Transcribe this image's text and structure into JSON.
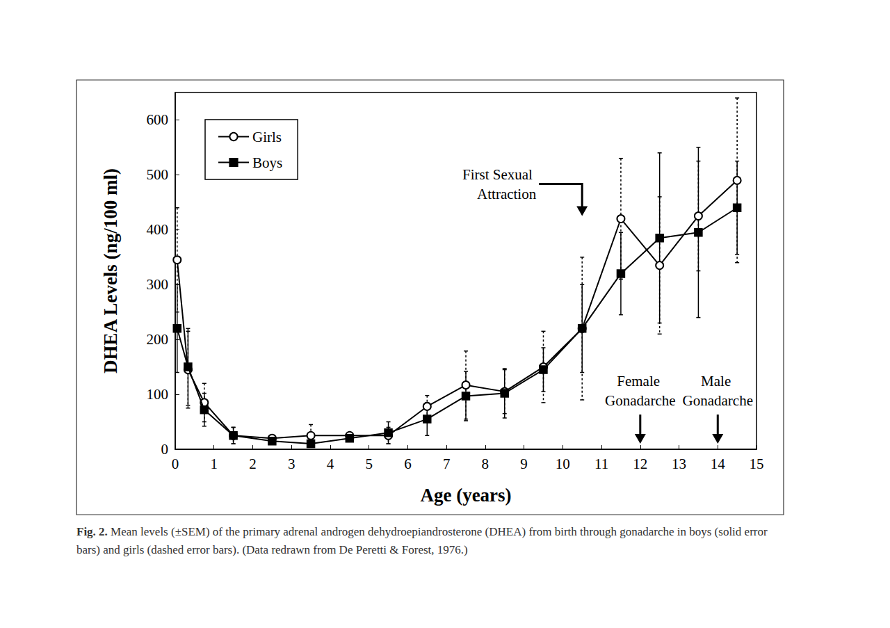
{
  "chart_data": {
    "type": "line",
    "x_label": "Age (years)",
    "y_label": "DHEA Levels (ng/100 ml)",
    "x": [
      0.05,
      0.33,
      0.75,
      1.5,
      2.5,
      3.5,
      4.5,
      5.5,
      6.5,
      7.5,
      8.5,
      9.5,
      10.5,
      11.5,
      12.5,
      13.5,
      14.5
    ],
    "series": [
      {
        "name": "Girls",
        "color": "#000000",
        "marker": "open_circle",
        "line_style": "solid",
        "values": [
          345,
          145,
          85,
          25,
          20,
          25,
          25,
          25,
          78,
          117,
          105,
          150,
          220,
          420,
          335,
          425,
          490
        ],
        "sem": [
          95,
          70,
          35,
          15,
          5,
          20,
          5,
          15,
          20,
          62,
          40,
          65,
          130,
          110,
          125,
          100,
          150
        ]
      },
      {
        "name": "Boys",
        "color": "#000000",
        "marker": "square",
        "line_style": "solid",
        "values": [
          220,
          150,
          72,
          25,
          15,
          10,
          20,
          30,
          55,
          97,
          102,
          145,
          220,
          320,
          385,
          395,
          440
        ],
        "sem": [
          80,
          70,
          30,
          15,
          5,
          5,
          5,
          20,
          30,
          45,
          45,
          40,
          80,
          75,
          155,
          155,
          85
        ]
      }
    ],
    "xlim": [
      0,
      15
    ],
    "xticks": [
      0,
      1,
      2,
      3,
      4,
      5,
      6,
      7,
      8,
      9,
      10,
      11,
      12,
      13,
      14,
      15
    ],
    "ylim": [
      0,
      650
    ],
    "yticks": [
      0,
      100,
      200,
      300,
      400,
      500,
      600
    ],
    "grid": false,
    "legend": "upper left",
    "annotations": [
      {
        "text": "First Sexual Attraction",
        "x": 10.5,
        "y": 425
      },
      {
        "text": "Female Gonadarche",
        "x": 12,
        "y": 10
      },
      {
        "text": "Male Gonadarche",
        "x": 14,
        "y": 10
      }
    ],
    "caption_label": "Fig. 2.",
    "caption": "Mean levels (±SEM) of the primary adrenal androgen dehydroepiandrosterone (DHEA) from birth through gonadarche in boys (solid error bars) and girls (dashed error bars). (Data redrawn from De Peretti & Forest, 1976.)"
  }
}
